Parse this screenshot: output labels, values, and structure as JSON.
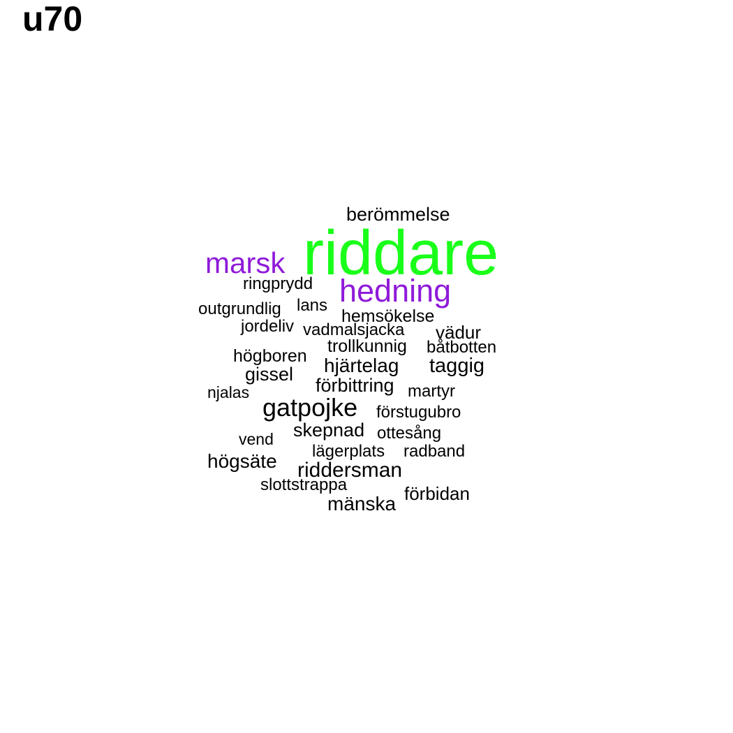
{
  "title": "u70",
  "colors": {
    "primary_word": "#1aff1a",
    "secondary_word": "#8f1ad9",
    "default_word": "#000000"
  },
  "words": {
    "riddare": "riddare",
    "berommelse": "berömmelse",
    "marsk": "marsk",
    "hedning": "hedning",
    "ringprydd": "ringprydd",
    "outgrundlig": "outgrundlig",
    "lans": "lans",
    "hemsokelse": "hemsökelse",
    "jordeliv": "jordeliv",
    "vadmalsjacka": "vadmalsjacka",
    "vadur": "vädur",
    "trollkunnig": "trollkunnig",
    "batbotten": "båtbotten",
    "hogboren": "högboren",
    "hjartelag": "hjärtelag",
    "taggig": "taggig",
    "gissel": "gissel",
    "forbittring": "förbittring",
    "njalas": "njalas",
    "martyr": "martyr",
    "gatpojke": "gatpojke",
    "forstugubro": "förstugubro",
    "skepnad": "skepnad",
    "ottesang": "ottesång",
    "vend": "vend",
    "lagerplats": "lägerplats",
    "radband": "radband",
    "hogsate": "högsäte",
    "riddersman": "riddersman",
    "slottstrappa": "slottstrappa",
    "forbidan": "förbidan",
    "manska": "mänska"
  }
}
